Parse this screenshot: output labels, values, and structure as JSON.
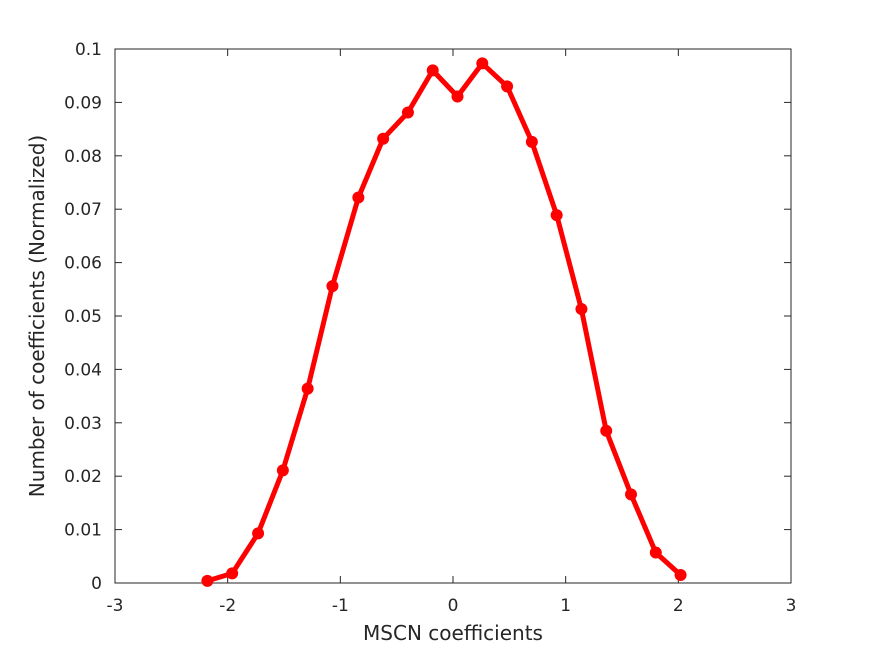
{
  "chart_data": {
    "type": "line",
    "title": "",
    "xlabel": "MSCN coefficients",
    "ylabel": "Number of coefficients (Normalized)",
    "xlim": [
      -3,
      3
    ],
    "ylim": [
      0,
      0.1
    ],
    "xticks": [
      "-3",
      "-2",
      "-1",
      "0",
      "1",
      "2",
      "3"
    ],
    "yticks": [
      "0",
      "0.01",
      "0.02",
      "0.03",
      "0.04",
      "0.05",
      "0.06",
      "0.07",
      "0.08",
      "0.09",
      "0.1"
    ],
    "grid": false,
    "legend": null,
    "series": [
      {
        "color": "#ff0000",
        "marker": "circle",
        "x": [
          -2.18,
          -1.96,
          -1.73,
          -1.51,
          -1.29,
          -1.07,
          -0.84,
          -0.62,
          -0.4,
          -0.18,
          0.04,
          0.26,
          0.48,
          0.7,
          0.92,
          1.14,
          1.36,
          1.58,
          1.8,
          2.02
        ],
        "y": [
          0.0004,
          0.0018,
          0.0093,
          0.0211,
          0.0364,
          0.0556,
          0.0722,
          0.0832,
          0.0881,
          0.096,
          0.0911,
          0.0973,
          0.093,
          0.0826,
          0.0689,
          0.0513,
          0.0285,
          0.0166,
          0.0057,
          0.0015
        ]
      }
    ]
  }
}
